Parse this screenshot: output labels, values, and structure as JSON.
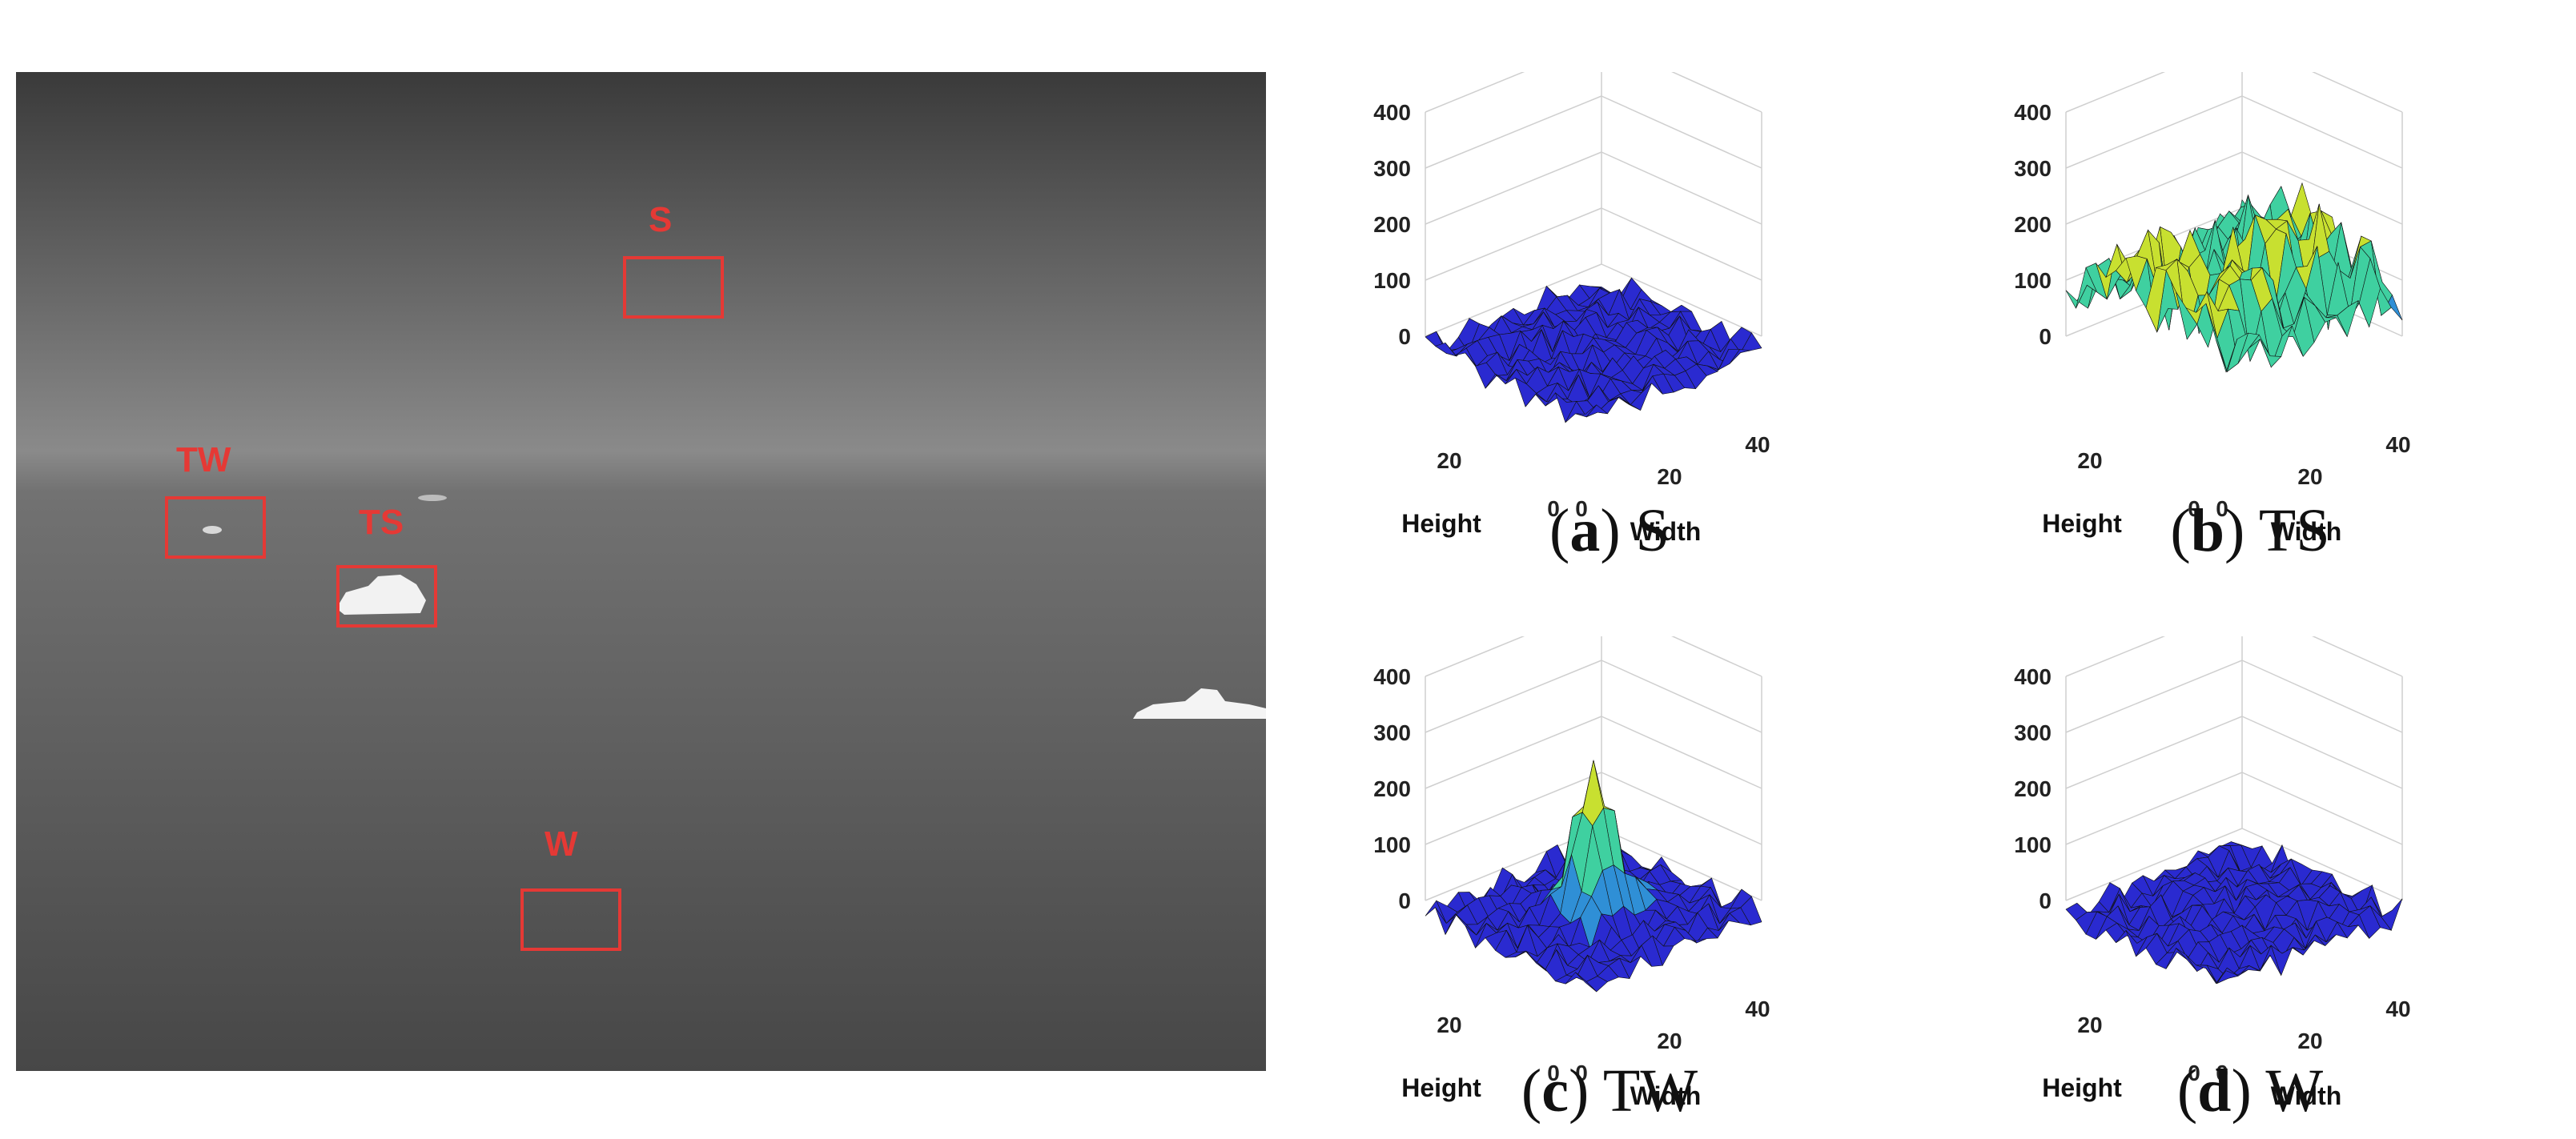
{
  "ir_image": {
    "regions": [
      {
        "key": "S",
        "label": "S"
      },
      {
        "key": "TW",
        "label": "TW"
      },
      {
        "key": "TS",
        "label": "TS"
      },
      {
        "key": "W",
        "label": "W"
      }
    ],
    "box_color": "#e53935"
  },
  "plots": [
    {
      "letter": "a",
      "name": "S",
      "peak": "low"
    },
    {
      "letter": "b",
      "name": "TS",
      "peak": "high"
    },
    {
      "letter": "c",
      "name": "TW",
      "peak": "spike"
    },
    {
      "letter": "d",
      "name": "W",
      "peak": "low"
    }
  ],
  "plot_axes": {
    "z_ticks": [
      "0",
      "100",
      "200",
      "300",
      "400"
    ],
    "height_ticks": [
      "20",
      "0"
    ],
    "width_ticks": [
      "0",
      "20",
      "40"
    ],
    "height_title": "Height",
    "width_title": "Width"
  },
  "colors": {
    "surface_low": "#2a2ad0",
    "surface_mid": "#2f8fd6",
    "surface_high": "#3fd0a0",
    "peak": "#c8e030"
  }
}
